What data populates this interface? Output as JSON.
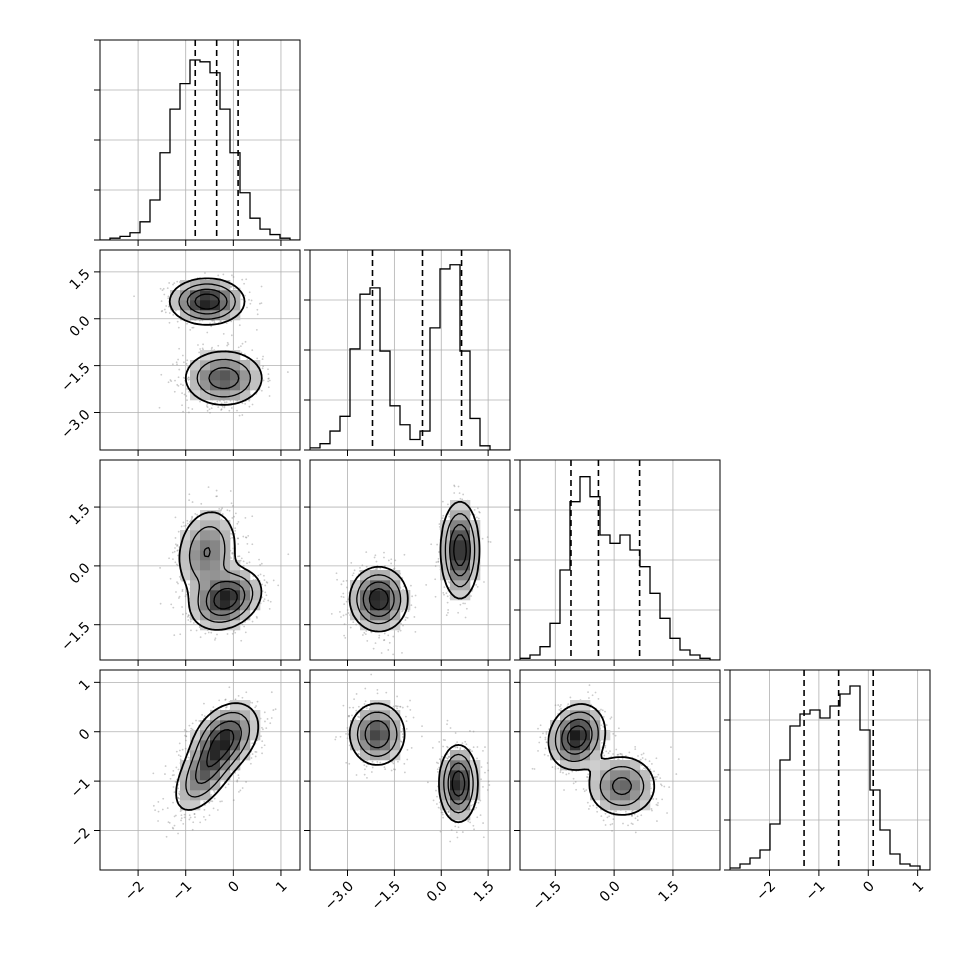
{
  "chart_data": {
    "type": "corner",
    "title": "",
    "grid": true,
    "quantile_line_style": "dashed",
    "variables": [
      {
        "xlim": [
          -2.8,
          1.4
        ],
        "ticks": [
          -2,
          -1,
          0,
          1
        ],
        "tick_labels": [
          "−2",
          "−1",
          "0",
          "1"
        ],
        "quantiles": [
          -0.8,
          -0.35,
          0.1
        ],
        "histogram": {
          "bin_start": -2.8,
          "bin_width": 0.21,
          "counts": [
            0,
            1,
            2,
            4,
            10,
            22,
            48,
            72,
            86,
            99,
            98,
            92,
            72,
            48,
            26,
            12,
            6,
            3,
            1,
            0
          ]
        },
        "hist_ylim": [
          0,
          110
        ]
      },
      {
        "xlim": [
          -4.2,
          2.2
        ],
        "ticks": [
          -3.0,
          -1.5,
          0.0,
          1.5
        ],
        "tick_labels": [
          "−3.0",
          "−1.5",
          "0.0",
          "1.5"
        ],
        "quantiles": [
          -2.2,
          -0.6,
          0.65
        ],
        "histogram": {
          "bin_start": -4.2,
          "bin_width": 0.32,
          "counts": [
            1,
            3,
            9,
            16,
            48,
            74,
            77,
            47,
            21,
            12,
            5,
            9,
            58,
            86,
            88,
            47,
            15,
            2,
            0,
            0
          ]
        },
        "hist_ylim": [
          0,
          95
        ]
      },
      {
        "xlim": [
          -2.4,
          2.7
        ],
        "ticks": [
          -1.5,
          0.0,
          1.5
        ],
        "tick_labels": [
          "−1.5",
          "0.0",
          "1.5"
        ],
        "quantiles": [
          -1.1,
          -0.4,
          0.65
        ],
        "histogram": {
          "bin_start": -2.4,
          "bin_width": 0.255,
          "counts": [
            1,
            3,
            8,
            22,
            54,
            95,
            110,
            98,
            75,
            70,
            75,
            66,
            56,
            40,
            25,
            13,
            6,
            3,
            1,
            0
          ]
        },
        "hist_ylim": [
          0,
          120
        ]
      },
      {
        "xlim": [
          -2.8,
          1.25
        ],
        "ticks": [
          -2,
          -1,
          0,
          1
        ],
        "tick_labels": [
          "−2",
          "−1",
          "0",
          "1"
        ],
        "quantiles": [
          -1.3,
          -0.6,
          0.1
        ],
        "histogram": {
          "bin_start": -2.8,
          "bin_width": 0.2025,
          "counts": [
            1,
            3,
            6,
            10,
            23,
            55,
            72,
            78,
            80,
            76,
            82,
            88,
            92,
            70,
            40,
            20,
            8,
            3,
            2,
            0
          ]
        },
        "hist_ylim": [
          0,
          100
        ]
      }
    ],
    "y_axis_ticks": {
      "1": {
        "ticks": [
          -3.0,
          -1.5,
          0.0,
          1.5
        ],
        "tick_labels": [
          "−3.0",
          "−1.5",
          "0.0",
          "1.5"
        ]
      },
      "2": {
        "ticks": [
          -1.5,
          0.0,
          1.5
        ],
        "tick_labels": [
          "−1.5",
          "0.0",
          "1.5"
        ]
      },
      "3": {
        "ticks": [
          -2,
          -1,
          0,
          1
        ],
        "tick_labels": [
          "−2",
          "−1",
          "0",
          "1"
        ]
      }
    },
    "pair_clusters": {
      "1,0": [
        {
          "weight": 0.5,
          "mean": [
            -0.55,
            0.55
          ],
          "sd": [
            0.38,
            0.36
          ],
          "rho": 0.0
        },
        {
          "weight": 0.5,
          "mean": [
            -0.2,
            -1.9
          ],
          "sd": [
            0.42,
            0.45
          ],
          "rho": 0.0
        }
      ],
      "2,0": [
        {
          "weight": 0.45,
          "mean": [
            -0.55,
            0.35
          ],
          "sd": [
            0.33,
            0.58
          ],
          "rho": 0.15
        },
        {
          "weight": 0.55,
          "mean": [
            -0.15,
            -0.85
          ],
          "sd": [
            0.36,
            0.38
          ],
          "rho": 0.25
        }
      ],
      "2,1": [
        {
          "weight": 0.5,
          "mean": [
            -2.0,
            -0.85
          ],
          "sd": [
            0.45,
            0.4
          ],
          "rho": 0.0
        },
        {
          "weight": 0.5,
          "mean": [
            0.6,
            0.4
          ],
          "sd": [
            0.3,
            0.6
          ],
          "rho": 0.0
        }
      ],
      "3,0": [
        {
          "weight": 0.5,
          "mean": [
            -0.55,
            -0.75
          ],
          "sd": [
            0.35,
            0.45
          ],
          "rho": 0.6
        },
        {
          "weight": 0.5,
          "mean": [
            -0.15,
            -0.1
          ],
          "sd": [
            0.35,
            0.35
          ],
          "rho": 0.3
        }
      ],
      "3,1": [
        {
          "weight": 0.5,
          "mean": [
            -2.05,
            -0.05
          ],
          "sd": [
            0.45,
            0.32
          ],
          "rho": 0.0
        },
        {
          "weight": 0.5,
          "mean": [
            0.55,
            -1.05
          ],
          "sd": [
            0.3,
            0.38
          ],
          "rho": 0.0
        }
      ],
      "3,2": [
        {
          "weight": 0.55,
          "mean": [
            -0.95,
            -0.1
          ],
          "sd": [
            0.35,
            0.32
          ],
          "rho": 0.15
        },
        {
          "weight": 0.45,
          "mean": [
            0.2,
            -1.1
          ],
          "sd": [
            0.45,
            0.32
          ],
          "rho": 0.0
        }
      ]
    },
    "contour_levels": [
      0.12,
      0.3,
      0.55,
      0.8
    ]
  }
}
